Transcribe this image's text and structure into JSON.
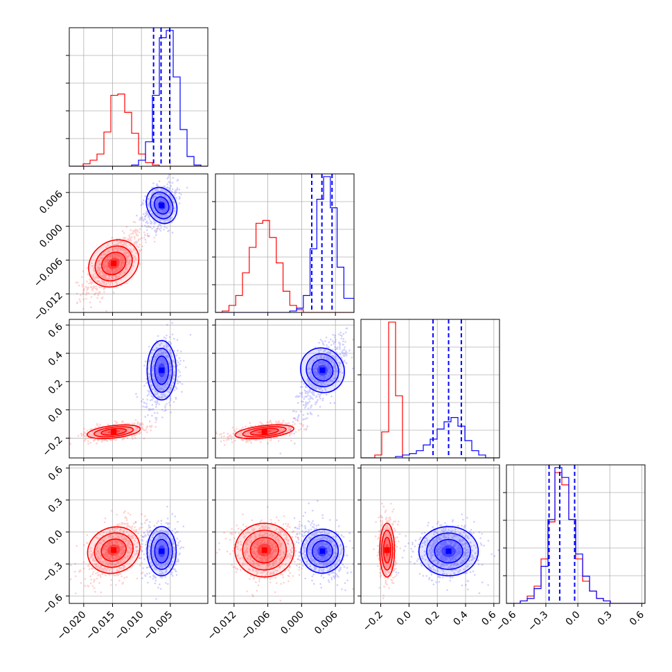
{
  "colors": {
    "red": "#ff0000",
    "blue": "#0000ff",
    "grid": "#b0b0b0"
  },
  "chart_data": {
    "type": "corner",
    "grid": true,
    "parameters": [
      {
        "range": [
          -0.0225,
          0.0015
        ],
        "ticks": [
          -0.02,
          -0.015,
          -0.01,
          -0.005
        ],
        "tick_labels": [
          "−0.020",
          "−0.015",
          "−0.010",
          "−0.005"
        ]
      },
      {
        "range": [
          -0.0153,
          0.0093
        ],
        "ticks": [
          -0.012,
          -0.006,
          0.0,
          0.006
        ],
        "tick_labels": [
          "−0.012",
          "−0.006",
          "0.000",
          "0.006"
        ]
      },
      {
        "range": [
          -0.34,
          0.64
        ],
        "ticks": [
          -0.2,
          0.0,
          0.2,
          0.4,
          0.6
        ],
        "tick_labels": [
          "−0.2",
          "0.0",
          "0.2",
          "0.4",
          "0.6"
        ]
      },
      {
        "range": [
          -0.67,
          0.63
        ],
        "ticks": [
          -0.6,
          -0.3,
          0.0,
          0.3,
          0.6
        ],
        "tick_labels": [
          "−0.6",
          "−0.3",
          "0.0",
          "0.3",
          "0.6"
        ]
      }
    ],
    "series": [
      {
        "color": "#ff0000",
        "mean": [
          -0.0148,
          -0.0066,
          -0.155,
          -0.17
        ],
        "sigma": [
          0.0022,
          0.0025,
          0.025,
          0.12
        ],
        "hist": [
          {
            "edges": [
              -0.0225,
              -0.0213,
              -0.0201,
              -0.0189,
              -0.0177,
              -0.0165,
              -0.0153,
              -0.0141,
              -0.0129,
              -0.0117,
              -0.0105,
              -0.0093,
              -0.0081,
              -0.0069,
              -0.0057,
              -0.0045,
              -0.0033,
              -0.0021,
              -0.0009,
              0.0003,
              0.0015
            ],
            "counts": [
              0,
              0,
              2,
              5,
              10,
              28,
              58,
              59,
              44,
              27,
              10,
              3,
              1,
              0,
              0,
              0,
              0,
              0,
              0,
              0
            ]
          },
          {
            "edges": [
              -0.0153,
              -0.0141,
              -0.0129,
              -0.0117,
              -0.0105,
              -0.0093,
              -0.0081,
              -0.0069,
              -0.0057,
              -0.0045,
              -0.0033,
              -0.0021,
              -0.0009,
              0.0003,
              0.0015,
              0.0027,
              0.0039,
              0.0051,
              0.0063,
              0.0075,
              0.0093
            ],
            "counts": [
              0,
              1,
              5,
              12,
              28,
              46,
              63,
              65,
              53,
              35,
              15,
              5,
              2,
              0,
              0,
              0,
              0,
              0,
              0,
              0
            ]
          },
          {
            "edges": [
              -0.34,
              -0.291,
              -0.242,
              -0.193,
              -0.144,
              -0.095,
              -0.046,
              0.003,
              0.052,
              0.101,
              0.15,
              0.199,
              0.248,
              0.297,
              0.346,
              0.395,
              0.444,
              0.493,
              0.542,
              0.591,
              0.64
            ],
            "counts": [
              0,
              0,
              2,
              18,
              94,
              43,
              0,
              0,
              0,
              0,
              0,
              0,
              0,
              0,
              0,
              0,
              0,
              0,
              0,
              0
            ]
          },
          {
            "edges": [
              -0.67,
              -0.605,
              -0.54,
              -0.475,
              -0.41,
              -0.345,
              -0.28,
              -0.215,
              -0.15,
              -0.085,
              -0.02,
              0.045,
              0.11,
              0.175,
              0.24,
              0.305,
              0.37,
              0.435,
              0.5,
              0.565,
              0.63
            ],
            "counts": [
              0,
              0,
              1,
              3,
              7,
              18,
              33,
              53,
              48,
              34,
              18,
              9,
              5,
              2,
              1,
              0,
              0,
              0,
              0,
              0
            ]
          }
        ]
      },
      {
        "color": "#0000ff",
        "mean": [
          -0.0065,
          0.0037,
          0.28,
          -0.18
        ],
        "sigma": [
          0.0012,
          0.0018,
          0.1,
          0.11
        ],
        "quantile_lines": [
          [
            -0.0079,
            -0.0066,
            -0.0051
          ],
          [
            0.0018,
            0.0036,
            0.0054
          ],
          [
            0.17,
            0.28,
            0.37
          ],
          [
            -0.27,
            -0.17,
            -0.03
          ]
        ],
        "hist": [
          {
            "edges": [
              -0.0225,
              -0.0213,
              -0.0201,
              -0.0189,
              -0.0177,
              -0.0165,
              -0.0153,
              -0.0141,
              -0.0129,
              -0.0117,
              -0.0105,
              -0.0093,
              -0.0081,
              -0.0069,
              -0.0057,
              -0.0045,
              -0.0033,
              -0.0021,
              -0.0009,
              0.0003,
              0.0015
            ],
            "counts": [
              0,
              0,
              0,
              0,
              0,
              0,
              0,
              0,
              0,
              1,
              5,
              20,
              58,
              105,
              111,
              73,
              30,
              8,
              1,
              0
            ]
          },
          {
            "edges": [
              -0.0153,
              -0.0141,
              -0.0129,
              -0.0117,
              -0.0105,
              -0.0093,
              -0.0081,
              -0.0069,
              -0.0057,
              -0.0045,
              -0.0033,
              -0.0021,
              -0.0009,
              0.0003,
              0.0015,
              0.0027,
              0.0039,
              0.0051,
              0.0063,
              0.0075,
              0.0093
            ],
            "counts": [
              0,
              0,
              0,
              0,
              0,
              0,
              0,
              0,
              0,
              0,
              0,
              1,
              3,
              12,
              45,
              80,
              96,
              74,
              32,
              10
            ]
          },
          {
            "edges": [
              -0.34,
              -0.291,
              -0.242,
              -0.193,
              -0.144,
              -0.095,
              -0.046,
              0.003,
              0.052,
              0.101,
              0.15,
              0.199,
              0.248,
              0.297,
              0.346,
              0.395,
              0.444,
              0.493,
              0.542,
              0.591,
              0.64
            ],
            "counts": [
              0,
              0,
              0,
              0,
              0,
              1,
              2,
              3,
              5,
              9,
              13,
              20,
              25,
              28,
              22,
              12,
              5,
              2,
              0,
              0
            ]
          },
          {
            "edges": [
              -0.67,
              -0.605,
              -0.54,
              -0.475,
              -0.41,
              -0.345,
              -0.28,
              -0.215,
              -0.15,
              -0.085,
              -0.02,
              0.045,
              0.11,
              0.175,
              0.24,
              0.305,
              0.37,
              0.435,
              0.5,
              0.565,
              0.63
            ],
            "counts": [
              0,
              0,
              1,
              2,
              6,
              15,
              34,
              55,
              51,
              34,
              20,
              11,
              5,
              2,
              1,
              0,
              0,
              0,
              0,
              0
            ]
          }
        ]
      }
    ]
  }
}
